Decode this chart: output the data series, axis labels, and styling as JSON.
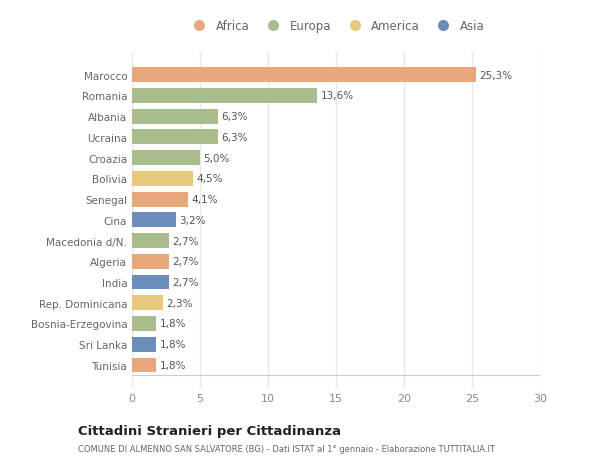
{
  "categories": [
    "Tunisia",
    "Sri Lanka",
    "Bosnia-Erzegovina",
    "Rep. Dominicana",
    "India",
    "Algeria",
    "Macedonia d/N.",
    "Cina",
    "Senegal",
    "Bolivia",
    "Croazia",
    "Ucraina",
    "Albania",
    "Romania",
    "Marocco"
  ],
  "values": [
    1.8,
    1.8,
    1.8,
    2.3,
    2.7,
    2.7,
    2.7,
    3.2,
    4.1,
    4.5,
    5.0,
    6.3,
    6.3,
    13.6,
    25.3
  ],
  "labels": [
    "1,8%",
    "1,8%",
    "1,8%",
    "2,3%",
    "2,7%",
    "2,7%",
    "2,7%",
    "3,2%",
    "4,1%",
    "4,5%",
    "5,0%",
    "6,3%",
    "6,3%",
    "13,6%",
    "25,3%"
  ],
  "colors": [
    "#e8a87c",
    "#6b8cba",
    "#a8bc8c",
    "#e8c87c",
    "#6b8cba",
    "#e8a87c",
    "#a8bc8c",
    "#6b8cba",
    "#e8a87c",
    "#e8c87c",
    "#a8bc8c",
    "#a8bc8c",
    "#a8bc8c",
    "#a8bc8c",
    "#e8a87c"
  ],
  "legend": [
    {
      "label": "Africa",
      "color": "#e8a87c"
    },
    {
      "label": "Europa",
      "color": "#a8bc8c"
    },
    {
      "label": "America",
      "color": "#e8c87c"
    },
    {
      "label": "Asia",
      "color": "#6b8cba"
    }
  ],
  "title": "Cittadini Stranieri per Cittadinanza",
  "subtitle": "COMUNE DI ALMENNO SAN SALVATORE (BG) - Dati ISTAT al 1° gennaio - Elaborazione TUTTITALIA.IT",
  "xlim": [
    0,
    30
  ],
  "xticks": [
    0,
    5,
    10,
    15,
    20,
    25,
    30
  ],
  "background_color": "#ffffff",
  "grid_color": "#e8e8e8",
  "bar_height": 0.72
}
